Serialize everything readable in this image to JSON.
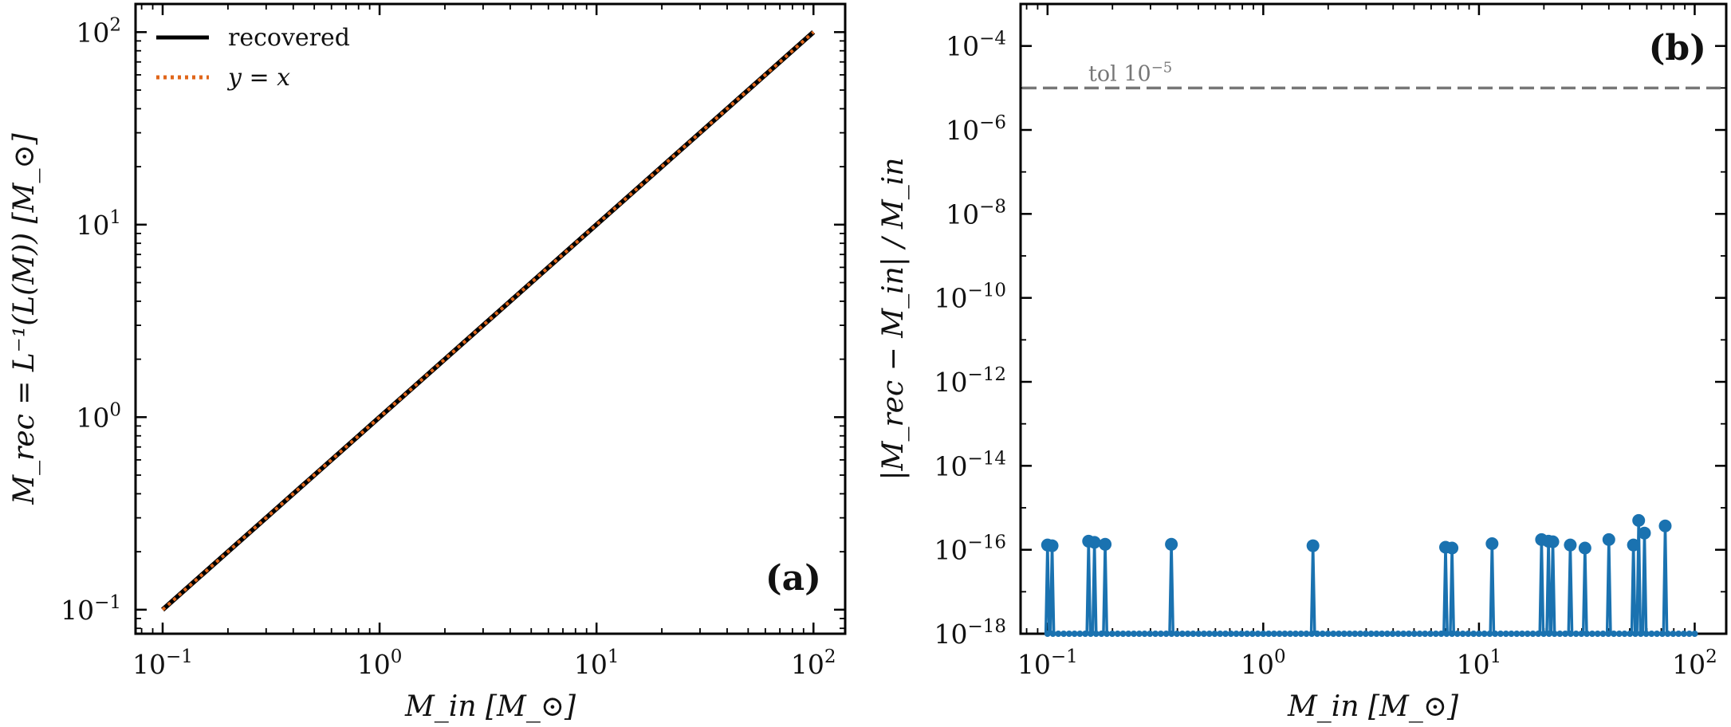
{
  "chart_data": [
    {
      "type": "line",
      "panel_label": "(a)",
      "xscale": "log",
      "yscale": "log",
      "xlim": [
        0.075,
        140
      ],
      "ylim": [
        0.075,
        140
      ],
      "xlabel": "M_in [M_⊙]",
      "ylabel": "M_rec = L⁻¹(L(M)) [M_⊙]",
      "xticks": [
        {
          "value": 0.1,
          "mantissa": "10",
          "exp": "−1"
        },
        {
          "value": 1,
          "mantissa": "10",
          "exp": "0"
        },
        {
          "value": 10,
          "mantissa": "10",
          "exp": "1"
        },
        {
          "value": 100,
          "mantissa": "10",
          "exp": "2"
        }
      ],
      "yticks": [
        {
          "value": 0.1,
          "mantissa": "10",
          "exp": "−1"
        },
        {
          "value": 1,
          "mantissa": "10",
          "exp": "0"
        },
        {
          "value": 10,
          "mantissa": "10",
          "exp": "1"
        },
        {
          "value": 100,
          "mantissa": "10",
          "exp": "2"
        }
      ],
      "legend_position": "top-left",
      "series": [
        {
          "name": "recovered",
          "color": "#000000",
          "style": "solid",
          "x": [
            0.1,
            100
          ],
          "y": [
            0.1,
            100
          ]
        },
        {
          "name": "y = x",
          "color": "#e0661a",
          "style": "dotted",
          "x": [
            0.1,
            100
          ],
          "y": [
            0.1,
            100
          ]
        }
      ]
    },
    {
      "type": "line",
      "panel_label": "(b)",
      "xscale": "log",
      "yscale": "log",
      "xlim": [
        0.075,
        140
      ],
      "ylim": [
        1e-18,
        0.001
      ],
      "xlabel": "M_in [M_⊙]",
      "ylabel": "|M_rec − M_in| / M_in",
      "xticks": [
        {
          "value": 0.1,
          "mantissa": "10",
          "exp": "−1"
        },
        {
          "value": 1,
          "mantissa": "10",
          "exp": "0"
        },
        {
          "value": 10,
          "mantissa": "10",
          "exp": "1"
        },
        {
          "value": 100,
          "mantissa": "10",
          "exp": "2"
        }
      ],
      "yticks": [
        {
          "value": 0.0001,
          "mantissa": "10",
          "exp": "−4"
        },
        {
          "value": 1e-06,
          "mantissa": "10",
          "exp": "−6"
        },
        {
          "value": 1e-08,
          "mantissa": "10",
          "exp": "−8"
        },
        {
          "value": 1e-10,
          "mantissa": "10",
          "exp": "−10"
        },
        {
          "value": 1e-12,
          "mantissa": "10",
          "exp": "−12"
        },
        {
          "value": 1e-14,
          "mantissa": "10",
          "exp": "−14"
        },
        {
          "value": 1e-16,
          "mantissa": "10",
          "exp": "−16"
        },
        {
          "value": 1e-18,
          "mantissa": "10",
          "exp": "−18"
        }
      ],
      "reference_line": {
        "value": 1e-05,
        "color": "#777777",
        "style": "dashed",
        "label": "tol",
        "label_mantissa": "10",
        "label_exp": "−5"
      },
      "floor_value": 1e-18,
      "series": [
        {
          "color": "#1a72b0",
          "style": "solid-with-markers",
          "points": [
            {
              "x": 0.1,
              "y": 1.3e-16
            },
            {
              "x": 0.105,
              "y": 1.25e-16
            },
            {
              "x": 0.155,
              "y": 1.6e-16
            },
            {
              "x": 0.165,
              "y": 1.5e-16
            },
            {
              "x": 0.185,
              "y": 1.35e-16
            },
            {
              "x": 0.375,
              "y": 1.35e-16
            },
            {
              "x": 1.7,
              "y": 1.25e-16
            },
            {
              "x": 7.0,
              "y": 1.15e-16
            },
            {
              "x": 7.5,
              "y": 1.1e-16
            },
            {
              "x": 11.5,
              "y": 1.4e-16
            },
            {
              "x": 19.5,
              "y": 1.75e-16
            },
            {
              "x": 21.0,
              "y": 1.6e-16
            },
            {
              "x": 22.0,
              "y": 1.55e-16
            },
            {
              "x": 26.5,
              "y": 1.3e-16
            },
            {
              "x": 31.0,
              "y": 1.1e-16
            },
            {
              "x": 40.0,
              "y": 1.75e-16
            },
            {
              "x": 52.0,
              "y": 1.3e-16
            },
            {
              "x": 55.0,
              "y": 5e-16
            },
            {
              "x": 58.5,
              "y": 2.5e-16
            },
            {
              "x": 73.0,
              "y": 3.7e-16
            }
          ]
        }
      ]
    }
  ]
}
